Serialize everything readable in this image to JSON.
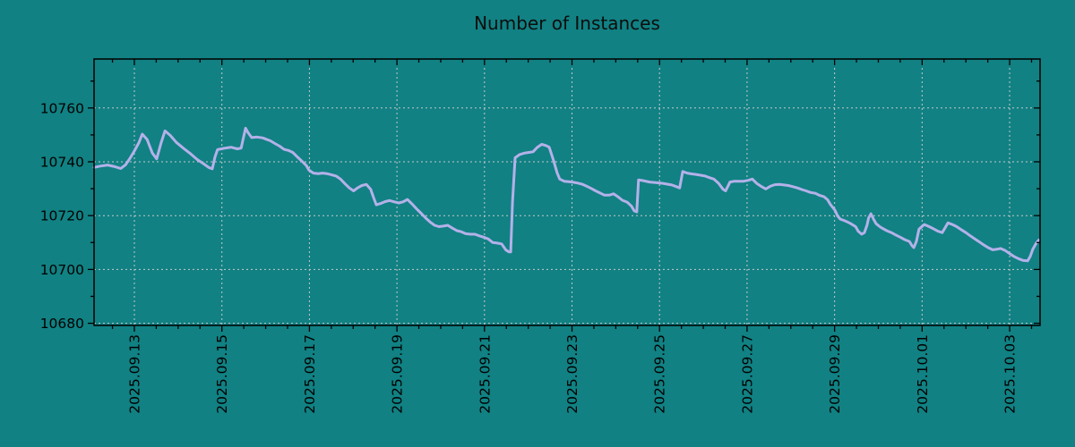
{
  "colors": {
    "background": "#118183",
    "line": "#b4b1e9",
    "grid": "#c8c8c8",
    "axis": "#000000",
    "text": "#000000"
  },
  "chart_data": {
    "type": "line",
    "title": "Number of Instances",
    "grid": true,
    "legend": "none",
    "x_axis": {
      "kind": "time",
      "day_zero_date": "2025-09-12",
      "xlim_days": [
        0.079,
        21.695
      ],
      "major_ticks_days": [
        1,
        3,
        5,
        7,
        9,
        11,
        13,
        15,
        17,
        19,
        21
      ],
      "major_tick_labels": [
        "2025.09.13",
        "2025.09.15",
        "2025.09.17",
        "2025.09.19",
        "2025.09.21",
        "2025.09.23",
        "2025.09.25",
        "2025.09.27",
        "2025.09.29",
        "2025.10.01",
        "2025.10.03"
      ],
      "minor_tick_step_days": 0.5,
      "label_rotation_deg": -90
    },
    "y_axis": {
      "ylim": [
        10679.2,
        10778.2
      ],
      "major_ticks": [
        10680,
        10700,
        10720,
        10740,
        10760
      ],
      "major_tick_labels": [
        "10680",
        "10700",
        "10720",
        "10740",
        "10760"
      ],
      "minor_ticks": [
        10690,
        10710,
        10730,
        10750,
        10770
      ]
    },
    "series": [
      {
        "name": "instances",
        "color": "#b4b1e9",
        "x_days": [
          0.08,
          0.22,
          0.39,
          0.53,
          0.69,
          0.8,
          0.9,
          1.0,
          1.1,
          1.18,
          1.29,
          1.41,
          1.51,
          1.61,
          1.7,
          1.82,
          1.96,
          2.13,
          2.27,
          2.43,
          2.58,
          2.7,
          2.78,
          2.84,
          2.9,
          3.05,
          3.21,
          3.35,
          3.44,
          3.54,
          3.6,
          3.68,
          3.8,
          3.93,
          4.01,
          4.11,
          4.21,
          4.32,
          4.42,
          4.52,
          4.62,
          4.72,
          4.83,
          4.93,
          4.99,
          5.09,
          5.2,
          5.3,
          5.4,
          5.5,
          5.61,
          5.71,
          5.81,
          5.91,
          6.01,
          6.1,
          6.2,
          6.3,
          6.4,
          6.46,
          6.53,
          6.63,
          6.73,
          6.83,
          6.94,
          7.04,
          7.14,
          7.24,
          7.34,
          7.45,
          7.55,
          7.65,
          7.76,
          7.86,
          7.96,
          8.06,
          8.16,
          8.27,
          8.37,
          8.47,
          8.57,
          8.68,
          8.78,
          8.88,
          8.98,
          9.08,
          9.19,
          9.29,
          9.39,
          9.49,
          9.56,
          9.6,
          9.64,
          9.7,
          9.8,
          9.9,
          10.01,
          10.11,
          10.21,
          10.31,
          10.41,
          10.48,
          10.58,
          10.66,
          10.72,
          10.82,
          10.93,
          11.03,
          11.13,
          11.23,
          11.34,
          11.44,
          11.54,
          11.64,
          11.74,
          11.85,
          11.95,
          12.05,
          12.15,
          12.26,
          12.36,
          12.42,
          12.48,
          12.52,
          12.63,
          12.77,
          12.91,
          13.08,
          13.18,
          13.28,
          13.38,
          13.46,
          13.53,
          13.63,
          13.73,
          13.83,
          13.94,
          14.04,
          14.14,
          14.24,
          14.35,
          14.45,
          14.51,
          14.61,
          14.71,
          14.82,
          14.92,
          15.02,
          15.12,
          15.22,
          15.33,
          15.43,
          15.53,
          15.63,
          15.74,
          15.84,
          15.94,
          16.04,
          16.15,
          16.25,
          16.35,
          16.45,
          16.56,
          16.66,
          16.76,
          16.84,
          16.9,
          17.01,
          17.07,
          17.13,
          17.23,
          17.31,
          17.37,
          17.48,
          17.54,
          17.62,
          17.68,
          17.74,
          17.78,
          17.83,
          17.89,
          17.95,
          18.03,
          18.09,
          18.19,
          18.3,
          18.4,
          18.5,
          18.6,
          18.71,
          18.77,
          18.81,
          18.87,
          18.93,
          19.05,
          19.16,
          19.26,
          19.36,
          19.46,
          19.52,
          19.59,
          19.69,
          19.79,
          19.89,
          20.0,
          20.1,
          20.2,
          20.3,
          20.4,
          20.51,
          20.61,
          20.71,
          20.79,
          20.9,
          21.0,
          21.1,
          21.2,
          21.3,
          21.41,
          21.47,
          21.53,
          21.61,
          21.67
        ],
        "values": [
          10737.9,
          10738.4,
          10738.8,
          10738.3,
          10737.5,
          10738.9,
          10741.3,
          10744.0,
          10747.0,
          10750.3,
          10748.3,
          10743.3,
          10741.1,
          10747.0,
          10751.5,
          10749.8,
          10747.2,
          10744.9,
          10743.2,
          10740.9,
          10739.3,
          10737.9,
          10737.4,
          10741.7,
          10744.5,
          10745.0,
          10745.4,
          10744.8,
          10745.1,
          10752.5,
          10750.8,
          10749.0,
          10749.2,
          10748.9,
          10748.4,
          10747.8,
          10746.8,
          10745.8,
          10744.6,
          10744.2,
          10743.5,
          10741.9,
          10740.2,
          10738.6,
          10736.9,
          10735.8,
          10735.6,
          10735.8,
          10735.6,
          10735.2,
          10734.7,
          10733.6,
          10731.9,
          10730.3,
          10729.2,
          10730.3,
          10731.2,
          10731.6,
          10729.8,
          10727.0,
          10724.0,
          10724.5,
          10725.2,
          10725.6,
          10725.1,
          10724.7,
          10725.1,
          10726.0,
          10724.4,
          10722.5,
          10720.9,
          10719.2,
          10717.6,
          10716.4,
          10715.9,
          10716.1,
          10716.4,
          10715.3,
          10714.4,
          10714.0,
          10713.3,
          10713.1,
          10713.1,
          10712.5,
          10712.0,
          10711.4,
          10710.0,
          10709.8,
          10709.5,
          10707.2,
          10706.5,
          10706.5,
          10725.0,
          10741.5,
          10742.7,
          10743.2,
          10743.5,
          10743.7,
          10745.4,
          10746.5,
          10746.0,
          10745.4,
          10740.4,
          10735.9,
          10733.6,
          10732.8,
          10732.6,
          10732.4,
          10732.1,
          10731.7,
          10730.9,
          10730.1,
          10729.2,
          10728.4,
          10727.6,
          10727.6,
          10728.1,
          10727.0,
          10725.7,
          10725.0,
          10723.5,
          10721.8,
          10721.4,
          10733.3,
          10733.0,
          10732.5,
          10732.3,
          10732.0,
          10731.7,
          10731.4,
          10730.8,
          10730.3,
          10736.4,
          10735.8,
          10735.5,
          10735.3,
          10735.0,
          10734.7,
          10734.1,
          10733.6,
          10732.0,
          10729.8,
          10729.2,
          10732.5,
          10732.8,
          10732.8,
          10732.8,
          10733.1,
          10733.6,
          10732.0,
          10730.8,
          10729.9,
          10730.9,
          10731.5,
          10731.6,
          10731.4,
          10731.2,
          10730.8,
          10730.3,
          10729.7,
          10729.2,
          10728.6,
          10728.3,
          10727.5,
          10727.0,
          10725.9,
          10724.2,
          10722.0,
          10719.8,
          10718.7,
          10718.1,
          10717.5,
          10717.0,
          10715.9,
          10714.2,
          10713.1,
          10713.7,
          10716.4,
          10719.2,
          10720.7,
          10718.7,
          10717.0,
          10715.9,
          10715.3,
          10714.4,
          10713.7,
          10712.8,
          10712.0,
          10711.1,
          10710.4,
          10708.8,
          10708.1,
          10710.5,
          10715.0,
          10716.7,
          10715.9,
          10715.1,
          10714.2,
          10713.7,
          10715.3,
          10717.3,
          10716.7,
          10715.9,
          10714.8,
          10713.7,
          10712.5,
          10711.4,
          10710.3,
          10709.2,
          10708.1,
          10707.3,
          10707.5,
          10707.8,
          10707.0,
          10705.9,
          10704.8,
          10704.0,
          10703.4,
          10703.2,
          10704.8,
          10707.5,
          10709.8,
          10711.0
        ]
      }
    ]
  }
}
